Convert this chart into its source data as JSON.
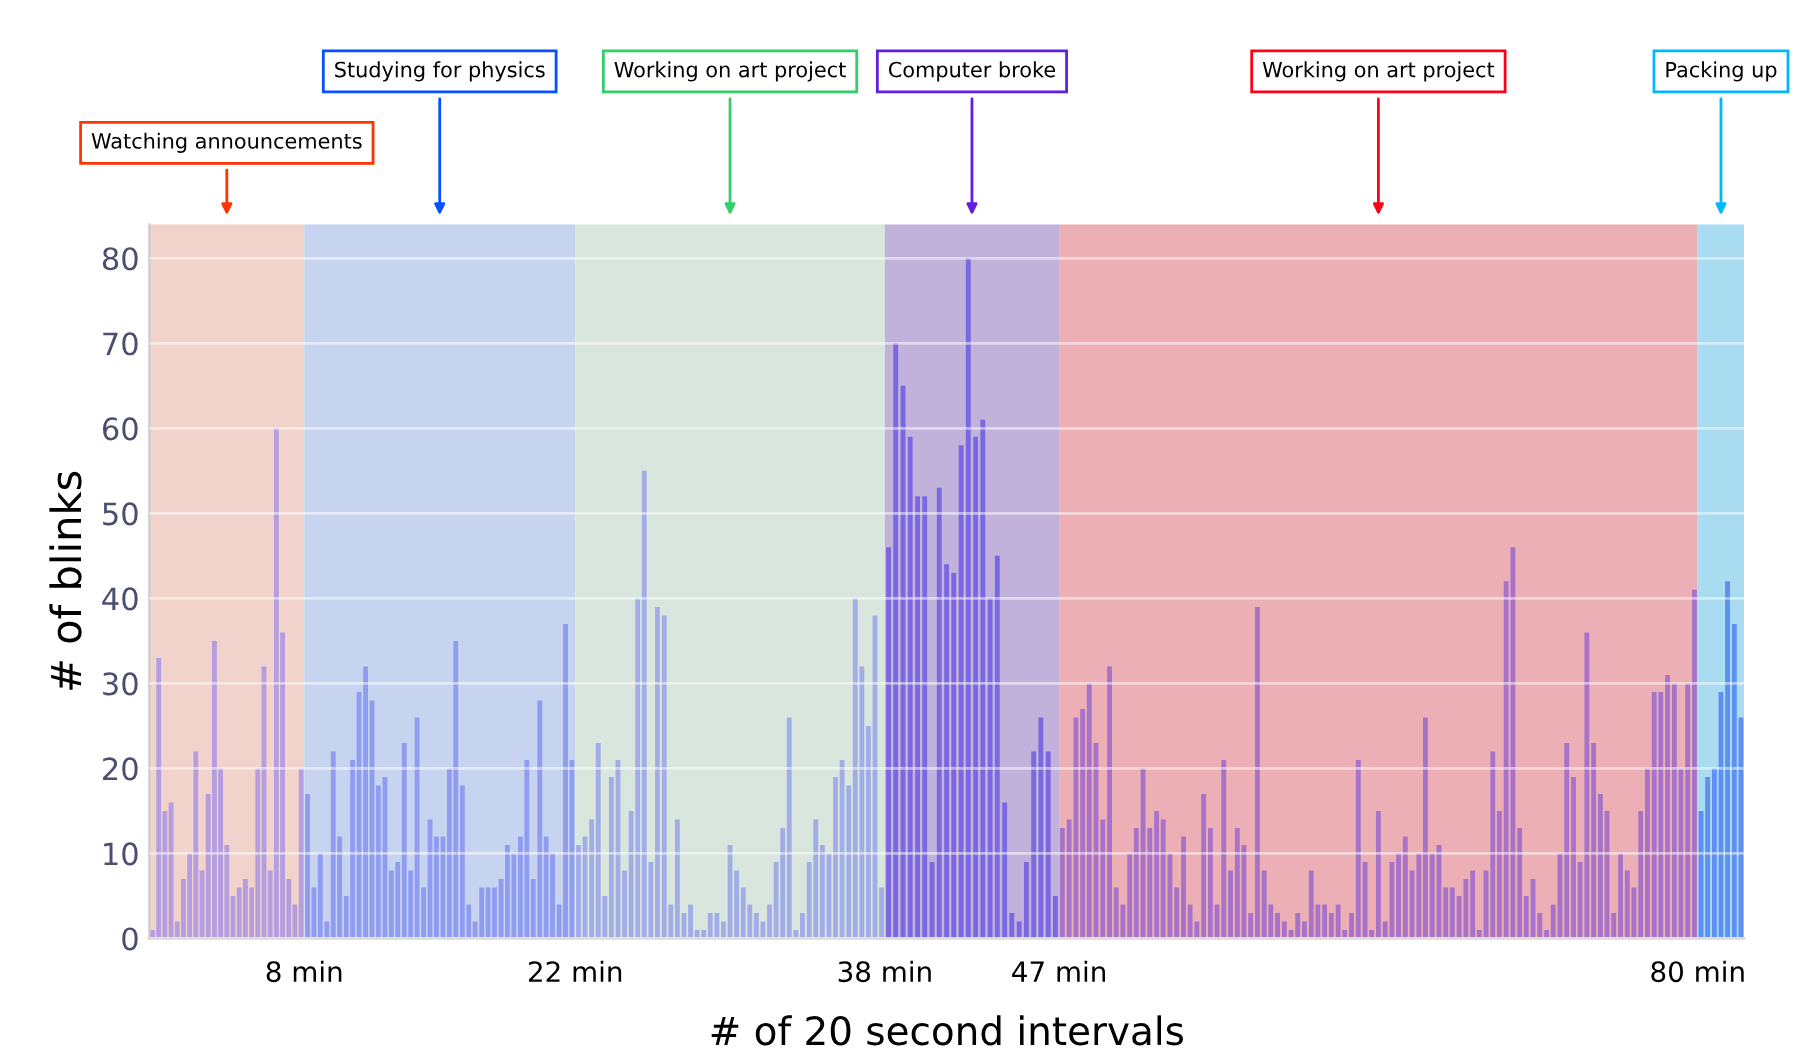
{
  "chart_data": {
    "type": "bar",
    "xlabel": "# of 20 second intervals",
    "ylabel": "# of blinks",
    "xlim": [
      0,
      82.4
    ],
    "ylim": [
      0,
      84
    ],
    "yticks": [
      0,
      10,
      20,
      30,
      40,
      50,
      60,
      70,
      80
    ],
    "xticks": [
      {
        "value": 8,
        "label": "8 min"
      },
      {
        "value": 22,
        "label": "22 min"
      },
      {
        "value": 38,
        "label": "38 min"
      },
      {
        "value": 47,
        "label": "47 min"
      },
      {
        "value": 80,
        "label": "80 min"
      }
    ],
    "grid": "y",
    "legend": false,
    "bands": [
      {
        "axis": "x",
        "from": 0,
        "to": 8,
        "label": "Watching announcements",
        "color": "#f2d3cb"
      },
      {
        "axis": "x",
        "from": 8,
        "to": 22,
        "label": "Studying for physics",
        "color": "#c7d4f0"
      },
      {
        "axis": "x",
        "from": 22,
        "to": 38,
        "label": "Working on art project",
        "color": "#d8e6dd"
      },
      {
        "axis": "x",
        "from": 38,
        "to": 47,
        "label": "Computer broke",
        "color": "#c1b2dc"
      },
      {
        "axis": "x",
        "from": 47,
        "to": 80,
        "label": "Working on art project",
        "color": "#ecafb5"
      },
      {
        "axis": "x",
        "from": 80,
        "to": 82.4,
        "label": "Packing up",
        "color": "#a9dcf0"
      }
    ],
    "series": [
      {
        "color": "#b49ee0",
        "x": [
          0.16,
          0.48,
          0.8,
          1.12,
          1.44,
          1.76,
          2.08,
          2.4,
          2.72,
          3.04,
          3.36,
          3.68,
          4,
          4.32,
          4.64,
          4.96,
          5.28,
          5.6,
          5.92,
          6.24,
          6.56,
          6.88,
          7.2,
          7.52,
          7.84
        ],
        "values": [
          1,
          33,
          15,
          16,
          2,
          7,
          10,
          22,
          8,
          17,
          35,
          20,
          11,
          5,
          6,
          7,
          6,
          20,
          32,
          8,
          60,
          36,
          7,
          4,
          20
        ]
      },
      {
        "color": "#8f9cf0",
        "x": [
          8.17,
          8.5,
          8.83,
          9.17,
          9.5,
          9.83,
          10.17,
          10.5,
          10.83,
          11.17,
          11.5,
          11.83,
          12.17,
          12.5,
          12.83,
          13.17,
          13.5,
          13.83,
          14.17,
          14.5,
          14.83,
          15.17,
          15.5,
          15.83,
          16.17,
          16.5,
          16.83,
          17.17,
          17.5,
          17.83,
          18.17,
          18.5,
          18.83,
          19.17,
          19.5,
          19.83,
          20.17,
          20.5,
          20.83,
          21.17,
          21.5,
          21.83
        ],
        "values": [
          17,
          6,
          10,
          2,
          22,
          12,
          5,
          21,
          29,
          32,
          28,
          18,
          19,
          8,
          9,
          23,
          8,
          26,
          6,
          14,
          12,
          12,
          20,
          35,
          18,
          4,
          2,
          6,
          6,
          6,
          7,
          11,
          10,
          12,
          21,
          7,
          28,
          12,
          10,
          4,
          37,
          21
        ]
      },
      {
        "color": "#a2ade8",
        "x": [
          22.17,
          22.51,
          22.85,
          23.19,
          23.53,
          23.87,
          24.21,
          24.55,
          24.89,
          25.23,
          25.57,
          25.91,
          26.25,
          26.6,
          26.94,
          27.28,
          27.62,
          27.96,
          28.3,
          28.64,
          28.98,
          29.32,
          29.66,
          30,
          30.34,
          30.68,
          31.02,
          31.36,
          31.7,
          32.04,
          32.38,
          32.72,
          33.06,
          33.4,
          33.74,
          34.09,
          34.43,
          34.77,
          35.11,
          35.45,
          35.79,
          36.13,
          36.47,
          36.81,
          37.15,
          37.49,
          37.83
        ],
        "values": [
          11,
          12,
          14,
          23,
          5,
          19,
          21,
          8,
          15,
          40,
          55,
          9,
          39,
          38,
          4,
          14,
          3,
          4,
          1,
          1,
          3,
          3,
          2,
          11,
          8,
          6,
          4,
          3,
          2,
          4,
          9,
          13,
          26,
          1,
          3,
          9,
          14,
          11,
          10,
          19,
          21,
          18,
          40,
          32,
          25,
          38,
          6
        ]
      },
      {
        "color": "#7a68e0",
        "x": [
          38.19,
          38.56,
          38.94,
          39.31,
          39.69,
          40.06,
          40.44,
          40.81,
          41.19,
          41.56,
          41.94,
          42.31,
          42.69,
          43.06,
          43.44,
          43.81,
          44.19,
          44.56,
          44.94,
          45.31,
          45.69,
          46.06,
          46.44,
          46.81
        ],
        "values": [
          46,
          70,
          65,
          59,
          52,
          52,
          9,
          53,
          44,
          43,
          58,
          80,
          59,
          61,
          40,
          45,
          16,
          3,
          2,
          9,
          22,
          26,
          22,
          5
        ]
      },
      {
        "color": "#a673c8",
        "x": [
          47.17,
          47.52,
          47.87,
          48.22,
          48.56,
          48.91,
          49.26,
          49.61,
          49.95,
          50.3,
          50.65,
          50.99,
          51.34,
          51.69,
          52.04,
          52.38,
          52.73,
          53.08,
          53.43,
          53.77,
          54.12,
          54.47,
          54.82,
          55.16,
          55.51,
          55.86,
          56.21,
          56.55,
          56.9,
          57.25,
          57.6,
          57.94,
          58.29,
          58.64,
          58.99,
          59.33,
          59.68,
          60.03,
          60.37,
          60.72,
          61.07,
          61.42,
          61.76,
          62.11,
          62.46,
          62.81,
          63.15,
          63.5,
          63.85,
          64.2,
          64.54,
          64.89,
          65.24,
          65.59,
          65.93,
          66.28,
          66.63,
          66.98,
          67.32,
          67.67,
          68.02,
          68.37,
          68.71,
          69.06,
          69.41,
          69.75,
          70.1,
          70.45,
          70.8,
          71.14,
          71.49,
          71.84,
          72.19,
          72.53,
          72.88,
          73.23,
          73.58,
          73.92,
          74.27,
          74.62,
          74.97,
          75.31,
          75.66,
          76.01,
          76.36,
          76.7,
          77.05,
          77.4,
          77.75,
          78.09,
          78.44,
          78.79,
          79.13,
          79.48,
          79.83
        ],
        "values": [
          13,
          14,
          26,
          27,
          30,
          23,
          14,
          32,
          6,
          4,
          10,
          13,
          20,
          13,
          15,
          14,
          10,
          6,
          12,
          4,
          2,
          17,
          13,
          4,
          21,
          8,
          13,
          11,
          3,
          39,
          8,
          4,
          3,
          2,
          1,
          3,
          2,
          8,
          4,
          4,
          3,
          4,
          1,
          3,
          21,
          9,
          1,
          15,
          2,
          9,
          10,
          12,
          8,
          10,
          26,
          10,
          11,
          6,
          6,
          5,
          7,
          8,
          1,
          8,
          22,
          15,
          42,
          46,
          13,
          5,
          7,
          3,
          1,
          4,
          10,
          23,
          19,
          9,
          36,
          23,
          17,
          15,
          3,
          10,
          8,
          6,
          15,
          20,
          29,
          29,
          31,
          30,
          20,
          30,
          41
        ]
      },
      {
        "color": "#5f8ff0",
        "x": [
          80.17,
          80.51,
          80.86,
          81.2,
          81.54,
          81.89,
          82.23
        ],
        "values": [
          15,
          19,
          20,
          29,
          42,
          37,
          26
        ]
      }
    ]
  }
}
